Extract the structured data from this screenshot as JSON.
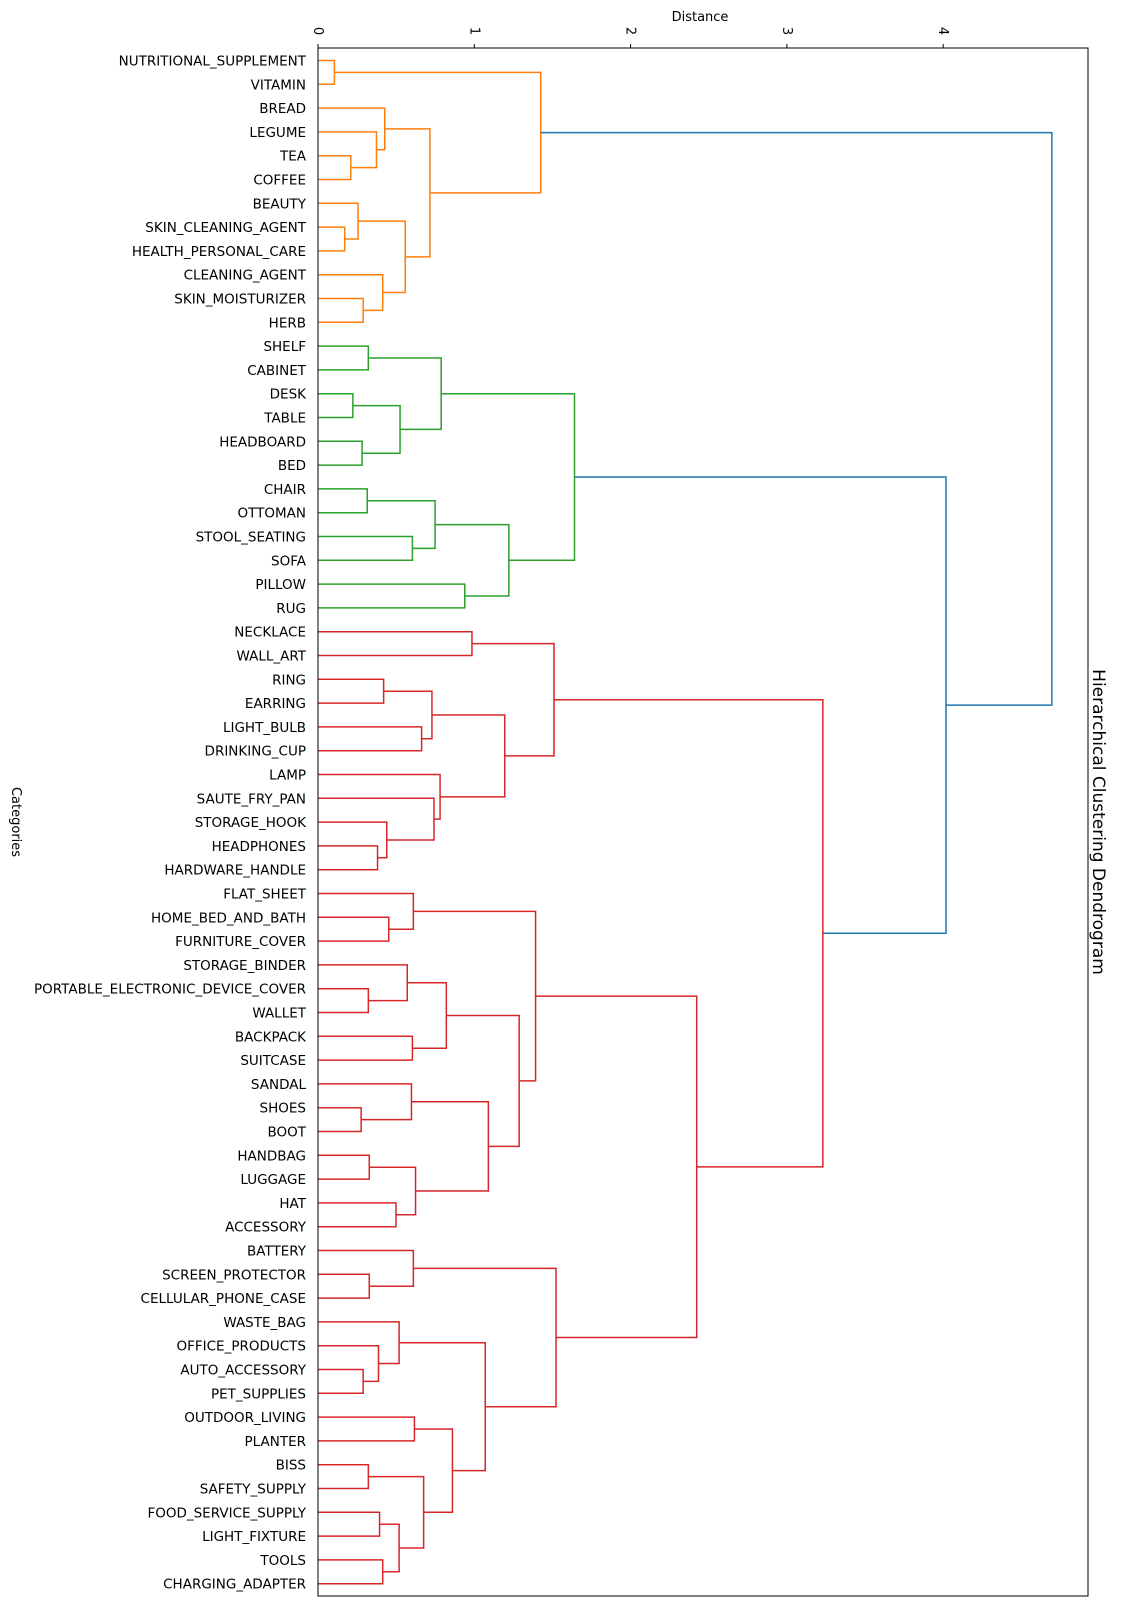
{
  "chart_data": {
    "type": "dendrogram",
    "title": "Hierarchical Clustering Dendrogram",
    "xlabel": "Distance",
    "ylabel": "Categories",
    "orientation": "leaves-left, distance increasing to the right",
    "xlim": [
      0,
      4.93
    ],
    "xticks": [
      "0",
      "1",
      "2",
      "3",
      "4"
    ],
    "grid": false,
    "colors": {
      "o": "#ff7f0e",
      "g": "#2ca02c",
      "r": "#d62728",
      "b": "#1f77b4"
    },
    "leaves": [
      "NUTRITIONAL_SUPPLEMENT",
      "VITAMIN",
      "BREAD",
      "LEGUME",
      "TEA",
      "COFFEE",
      "BEAUTY",
      "SKIN_CLEANING_AGENT",
      "HEALTH_PERSONAL_CARE",
      "CLEANING_AGENT",
      "SKIN_MOISTURIZER",
      "HERB",
      "SHELF",
      "CABINET",
      "DESK",
      "TABLE",
      "HEADBOARD",
      "BED",
      "CHAIR",
      "OTTOMAN",
      "STOOL_SEATING",
      "SOFA",
      "PILLOW",
      "RUG",
      "NECKLACE",
      "WALL_ART",
      "RING",
      "EARRING",
      "LIGHT_BULB",
      "DRINKING_CUP",
      "LAMP",
      "SAUTE_FRY_PAN",
      "STORAGE_HOOK",
      "HEADPHONES",
      "HARDWARE_HANDLE",
      "FLAT_SHEET",
      "HOME_BED_AND_BATH",
      "FURNITURE_COVER",
      "STORAGE_BINDER",
      "PORTABLE_ELECTRONIC_DEVICE_COVER",
      "WALLET",
      "BACKPACK",
      "SUITCASE",
      "SANDAL",
      "SHOES",
      "BOOT",
      "HANDBAG",
      "LUGGAGE",
      "HAT",
      "ACCESSORY",
      "BATTERY",
      "SCREEN_PROTECTOR",
      "CELLULAR_PHONE_CASE",
      "WASTE_BAG",
      "OFFICE_PRODUCTS",
      "AUTO_ACCESSORY",
      "PET_SUPPLIES",
      "OUTDOOR_LIVING",
      "PLANTER",
      "BISS",
      "SAFETY_SUPPLY",
      "FOOD_SERVICE_SUPPLY",
      "LIGHT_FIXTURE",
      "TOOLS",
      "CHARGING_ADAPTER"
    ],
    "merges": [
      [
        0,
        1,
        0.105,
        "o"
      ],
      [
        4,
        5,
        0.21,
        "o"
      ],
      [
        3,
        66,
        0.374,
        "o"
      ],
      [
        2,
        67,
        0.427,
        "o"
      ],
      [
        7,
        8,
        0.171,
        "o"
      ],
      [
        6,
        69,
        0.256,
        "o"
      ],
      [
        10,
        11,
        0.289,
        "o"
      ],
      [
        9,
        71,
        0.414,
        "o"
      ],
      [
        70,
        72,
        0.558,
        "o"
      ],
      [
        68,
        73,
        0.716,
        "o"
      ],
      [
        65,
        74,
        1.425,
        "o"
      ],
      [
        12,
        13,
        0.322,
        "g"
      ],
      [
        14,
        15,
        0.223,
        "g"
      ],
      [
        16,
        17,
        0.282,
        "g"
      ],
      [
        77,
        78,
        0.525,
        "g"
      ],
      [
        76,
        79,
        0.788,
        "g"
      ],
      [
        18,
        19,
        0.315,
        "g"
      ],
      [
        20,
        21,
        0.604,
        "g"
      ],
      [
        81,
        82,
        0.749,
        "g"
      ],
      [
        22,
        23,
        0.939,
        "g"
      ],
      [
        83,
        84,
        1.221,
        "g"
      ],
      [
        80,
        85,
        1.641,
        "g"
      ],
      [
        24,
        25,
        0.985,
        "r"
      ],
      [
        26,
        27,
        0.42,
        "r"
      ],
      [
        28,
        29,
        0.663,
        "r"
      ],
      [
        88,
        89,
        0.729,
        "r"
      ],
      [
        33,
        34,
        0.381,
        "r"
      ],
      [
        32,
        91,
        0.44,
        "r"
      ],
      [
        31,
        92,
        0.742,
        "r"
      ],
      [
        30,
        93,
        0.781,
        "r"
      ],
      [
        90,
        94,
        1.195,
        "r"
      ],
      [
        87,
        95,
        1.51,
        "r"
      ],
      [
        36,
        37,
        0.453,
        "r"
      ],
      [
        35,
        97,
        0.61,
        "r"
      ],
      [
        39,
        40,
        0.322,
        "r"
      ],
      [
        38,
        99,
        0.571,
        "r"
      ],
      [
        41,
        42,
        0.604,
        "r"
      ],
      [
        100,
        101,
        0.821,
        "r"
      ],
      [
        44,
        45,
        0.276,
        "r"
      ],
      [
        43,
        103,
        0.598,
        "r"
      ],
      [
        46,
        47,
        0.328,
        "r"
      ],
      [
        48,
        49,
        0.499,
        "r"
      ],
      [
        105,
        106,
        0.624,
        "r"
      ],
      [
        104,
        107,
        1.09,
        "r"
      ],
      [
        102,
        108,
        1.287,
        "r"
      ],
      [
        98,
        109,
        1.392,
        "r"
      ],
      [
        51,
        52,
        0.328,
        "r"
      ],
      [
        50,
        111,
        0.61,
        "r"
      ],
      [
        55,
        56,
        0.289,
        "r"
      ],
      [
        54,
        113,
        0.387,
        "r"
      ],
      [
        53,
        114,
        0.519,
        "r"
      ],
      [
        57,
        58,
        0.617,
        "r"
      ],
      [
        59,
        60,
        0.322,
        "r"
      ],
      [
        61,
        62,
        0.394,
        "r"
      ],
      [
        63,
        64,
        0.414,
        "r"
      ],
      [
        118,
        119,
        0.519,
        "r"
      ],
      [
        117,
        120,
        0.676,
        "r"
      ],
      [
        116,
        121,
        0.86,
        "r"
      ],
      [
        115,
        122,
        1.07,
        "r"
      ],
      [
        112,
        123,
        1.523,
        "r"
      ],
      [
        110,
        124,
        2.423,
        "r"
      ],
      [
        96,
        125,
        3.23,
        "r"
      ],
      [
        86,
        126,
        4.018,
        "b"
      ],
      [
        75,
        127,
        4.695,
        "b"
      ]
    ]
  }
}
